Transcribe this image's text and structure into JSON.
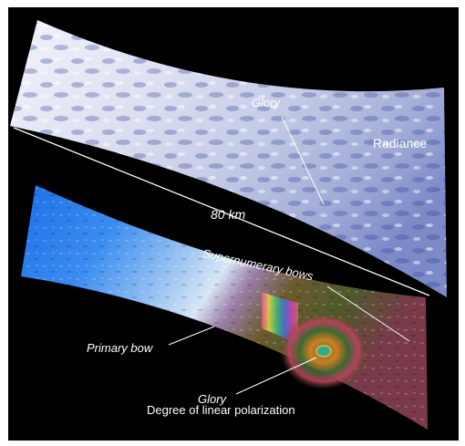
{
  "labels": {
    "glory_top": "Glory",
    "radiance": "Radiance",
    "scale": "80 km",
    "supernumerary": "Supernumerary bows",
    "primary_bow": "Primary bow",
    "glory_bottom": "Glory",
    "dolp": "Degree of linear polarization"
  },
  "colors": {
    "background": "#000000",
    "annotation": "#ffffff",
    "cloud_light": "#eef0fa",
    "cloud_dark": "#2b3c8e",
    "sky_blue": "#2a7df2"
  }
}
